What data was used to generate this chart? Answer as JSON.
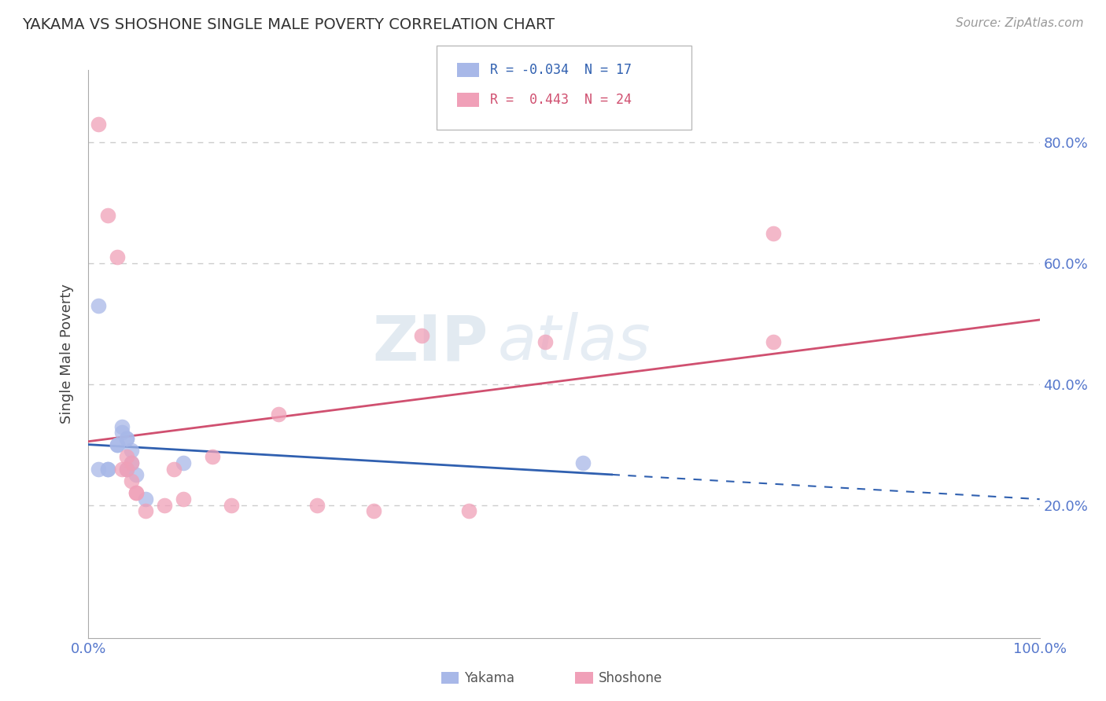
{
  "title": "YAKAMA VS SHOSHONE SINGLE MALE POVERTY CORRELATION CHART",
  "source_text": "Source: ZipAtlas.com",
  "ylabel": "Single Male Poverty",
  "watermark": "ZIPatlas",
  "legend_blue_r": "-0.034",
  "legend_blue_n": "17",
  "legend_pink_r": "0.443",
  "legend_pink_n": "24",
  "xlim": [
    0.0,
    1.0
  ],
  "ylim": [
    -0.02,
    0.92
  ],
  "yticks": [
    0.2,
    0.4,
    0.6,
    0.8
  ],
  "ytick_labels": [
    "20.0%",
    "40.0%",
    "60.0%",
    "80.0%"
  ],
  "blue_scatter_color": "#a8b8e8",
  "pink_scatter_color": "#f0a0b8",
  "blue_line_color": "#3060b0",
  "pink_line_color": "#d05070",
  "grid_color": "#cccccc",
  "background_color": "#ffffff",
  "tick_label_color": "#5577cc",
  "yakama_x": [
    0.01,
    0.02,
    0.02,
    0.03,
    0.03,
    0.035,
    0.035,
    0.04,
    0.04,
    0.04,
    0.045,
    0.045,
    0.05,
    0.06,
    0.1,
    0.52,
    0.01
  ],
  "yakama_y": [
    0.26,
    0.26,
    0.26,
    0.3,
    0.3,
    0.32,
    0.33,
    0.31,
    0.31,
    0.26,
    0.27,
    0.29,
    0.25,
    0.21,
    0.27,
    0.27,
    0.53
  ],
  "shoshone_x": [
    0.01,
    0.02,
    0.03,
    0.035,
    0.04,
    0.04,
    0.045,
    0.045,
    0.05,
    0.05,
    0.06,
    0.08,
    0.09,
    0.1,
    0.13,
    0.15,
    0.2,
    0.24,
    0.3,
    0.35,
    0.4,
    0.48,
    0.72,
    0.72
  ],
  "shoshone_y": [
    0.83,
    0.68,
    0.61,
    0.26,
    0.26,
    0.28,
    0.24,
    0.27,
    0.22,
    0.22,
    0.19,
    0.2,
    0.26,
    0.21,
    0.28,
    0.2,
    0.35,
    0.2,
    0.19,
    0.48,
    0.19,
    0.47,
    0.65,
    0.47
  ]
}
